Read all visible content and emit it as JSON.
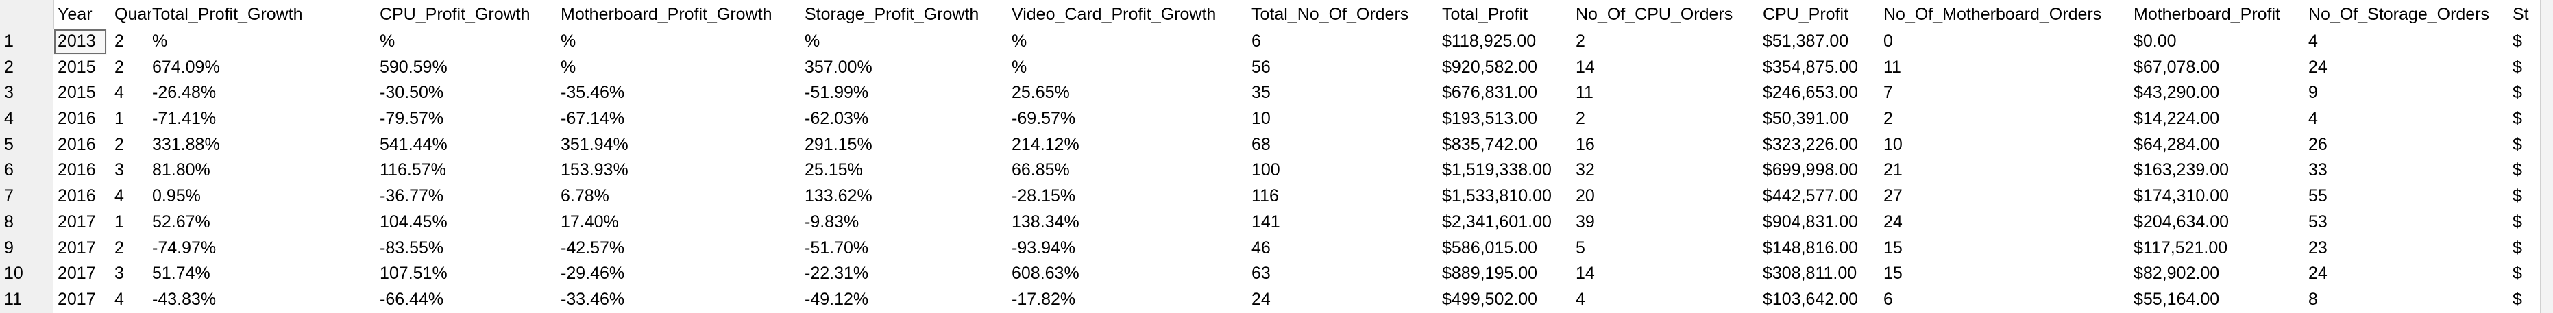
{
  "columns": [
    "Year",
    "Quarter",
    "Total_Profit_Growth",
    "CPU_Profit_Growth",
    "Motherboard_Profit_Growth",
    "Storage_Profit_Growth",
    "Video_Card_Profit_Growth",
    "Total_No_Of_Orders",
    "Total_Profit",
    "No_Of_CPU_Orders",
    "CPU_Profit",
    "No_Of_Motherboard_Orders",
    "Motherboard_Profit",
    "No_Of_Storage_Orders",
    "St"
  ],
  "rows": [
    {
      "num": "1",
      "cells": [
        "2013",
        "2",
        "%",
        "%",
        "%",
        "%",
        "%",
        "6",
        "$118,925.00",
        "2",
        "$51,387.00",
        "0",
        "$0.00",
        "4",
        "$"
      ]
    },
    {
      "num": "2",
      "cells": [
        "2015",
        "2",
        "674.09%",
        "590.59%",
        "%",
        "357.00%",
        "%",
        "56",
        "$920,582.00",
        "14",
        "$354,875.00",
        "11",
        "$67,078.00",
        "24",
        "$"
      ]
    },
    {
      "num": "3",
      "cells": [
        "2015",
        "4",
        "-26.48%",
        "-30.50%",
        "-35.46%",
        "-51.99%",
        "25.65%",
        "35",
        "$676,831.00",
        "11",
        "$246,653.00",
        "7",
        "$43,290.00",
        "9",
        "$"
      ]
    },
    {
      "num": "4",
      "cells": [
        "2016",
        "1",
        "-71.41%",
        "-79.57%",
        "-67.14%",
        "-62.03%",
        "-69.57%",
        "10",
        "$193,513.00",
        "2",
        "$50,391.00",
        "2",
        "$14,224.00",
        "4",
        "$"
      ]
    },
    {
      "num": "5",
      "cells": [
        "2016",
        "2",
        "331.88%",
        "541.44%",
        "351.94%",
        "291.15%",
        "214.12%",
        "68",
        "$835,742.00",
        "16",
        "$323,226.00",
        "10",
        "$64,284.00",
        "26",
        "$"
      ]
    },
    {
      "num": "6",
      "cells": [
        "2016",
        "3",
        "81.80%",
        "116.57%",
        "153.93%",
        "25.15%",
        "66.85%",
        "100",
        "$1,519,338.00",
        "32",
        "$699,998.00",
        "21",
        "$163,239.00",
        "33",
        "$"
      ]
    },
    {
      "num": "7",
      "cells": [
        "2016",
        "4",
        "0.95%",
        "-36.77%",
        "6.78%",
        "133.62%",
        "-28.15%",
        "116",
        "$1,533,810.00",
        "20",
        "$442,577.00",
        "27",
        "$174,310.00",
        "55",
        "$"
      ]
    },
    {
      "num": "8",
      "cells": [
        "2017",
        "1",
        "52.67%",
        "104.45%",
        "17.40%",
        "-9.83%",
        "138.34%",
        "141",
        "$2,341,601.00",
        "39",
        "$904,831.00",
        "24",
        "$204,634.00",
        "53",
        "$"
      ]
    },
    {
      "num": "9",
      "cells": [
        "2017",
        "2",
        "-74.97%",
        "-83.55%",
        "-42.57%",
        "-51.70%",
        "-93.94%",
        "46",
        "$586,015.00",
        "5",
        "$148,816.00",
        "15",
        "$117,521.00",
        "23",
        "$"
      ]
    },
    {
      "num": "10",
      "cells": [
        "2017",
        "3",
        "51.74%",
        "107.51%",
        "-29.46%",
        "-22.31%",
        "608.63%",
        "63",
        "$889,195.00",
        "14",
        "$308,811.00",
        "15",
        "$82,902.00",
        "24",
        "$"
      ]
    },
    {
      "num": "11",
      "cells": [
        "2017",
        "4",
        "-43.83%",
        "-66.44%",
        "-33.46%",
        "-49.12%",
        "-17.82%",
        "24",
        "$499,502.00",
        "4",
        "$103,642.00",
        "6",
        "$55,164.00",
        "8",
        "$"
      ]
    }
  ]
}
